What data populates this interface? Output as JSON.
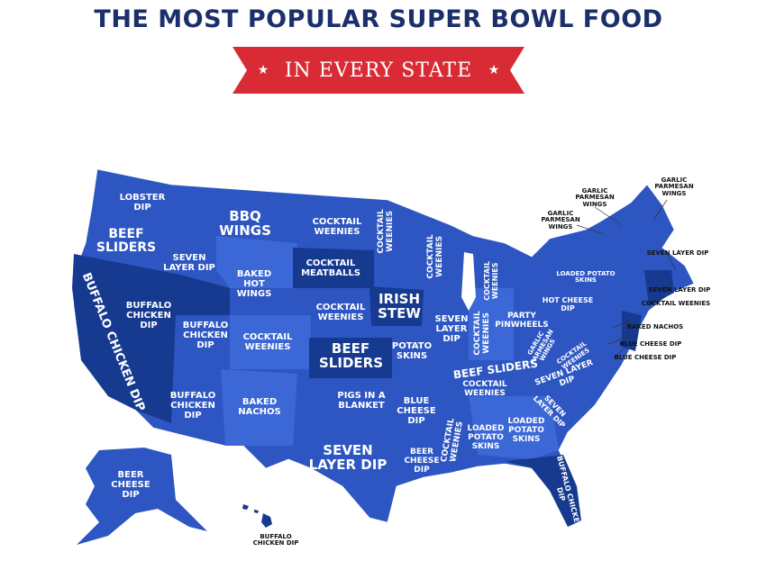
{
  "header": {
    "title": "THE MOST POPULAR SUPER BOWL FOOD",
    "banner": "IN EVERY STATE"
  },
  "map_labels": [
    "LOBSTER DIP",
    "BEEF SLIDERS",
    "SEVEN LAYER DIP",
    "BBQ WINGS",
    "COCKTAIL WEENIES",
    "COCKTAIL MEATBALLS",
    "BAKED HOT WINGS",
    "BUFFALO CHICKEN DIP",
    "BUFFALO CHICKEN DIP",
    "BUFFALO CHICKEN DIP",
    "COCKTAIL WEENIES",
    "COCKTAIL WEENIES",
    "BEEF SLIDERS",
    "BUFFALO CHICKEN DIP",
    "BAKED NACHOS",
    "PIGS IN A BLANKET",
    "SEVEN LAYER DIP",
    "BEER CHEESE DIP",
    "BUFFALO CHICKEN DIP",
    "COCKTAIL WEENIES",
    "IRISH STEW",
    "COCKTAIL WEENIES",
    "POTATO SKINS",
    "SEVEN LAYER DIP",
    "BLUE CHEESE DIP",
    "BEER CHEESE DIP",
    "COCKTAIL WEENIES",
    "LOADED POTATO SKINS",
    "LOADED POTATO SKINS",
    "BUFFALO CHICKEN DIP",
    "COCKTAIL WEENIES",
    "COCKTAIL WEENIES",
    "PARTY PINWHEELS",
    "BEEF SLIDERS",
    "COCKTAIL WEENIES",
    "SEVEN LAYER DIP",
    "SEVEN LAYER DIP",
    "GARLIC PARMESAN WINGS",
    "COCKTAIL WEENIES",
    "HOT CHEESE DIP",
    "LOADED POTATO SKINS",
    "GARLIC PARMESAN WINGS",
    "GARLIC PARMESAN WINGS",
    "GARLIC PARMESAN WINGS",
    "SEVEN LAYER DIP",
    "SEVEN LAYER DIP",
    "COCKTAIL WEENIES",
    "BAKED NACHOS",
    "BLUE CHEESE DIP",
    "BLUE CHEESE DIP"
  ]
}
